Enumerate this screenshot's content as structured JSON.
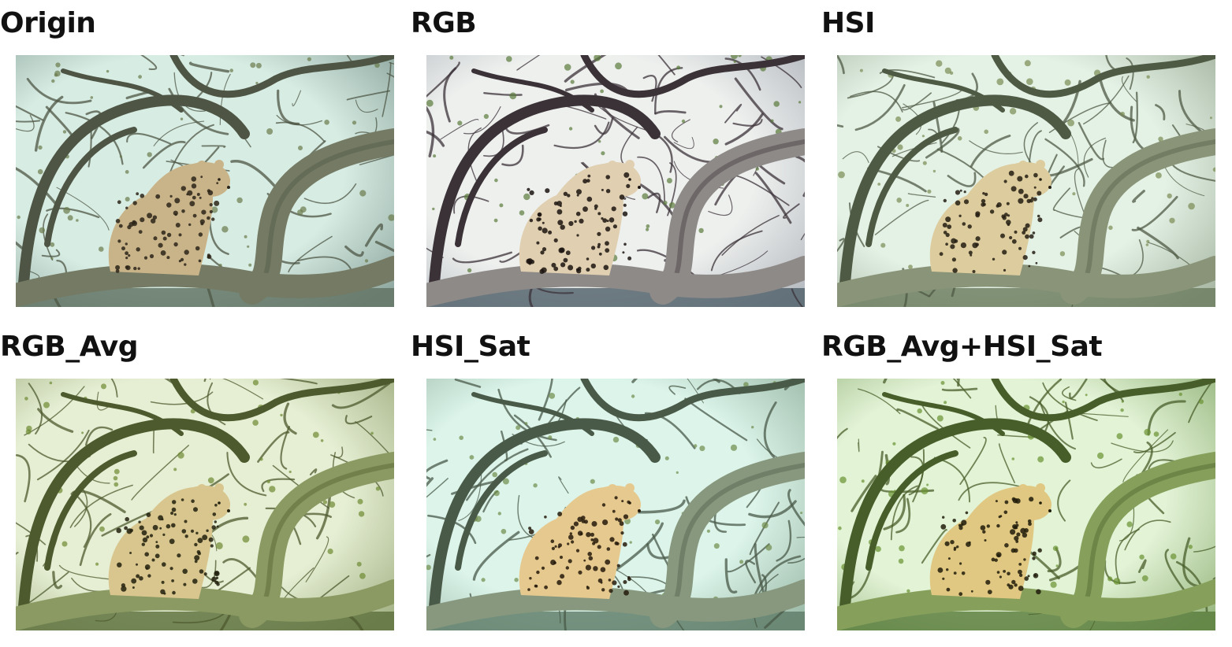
{
  "panels": [
    {
      "title": "Origin",
      "sky": "#d7ece3",
      "sky_edge": "#8fa8a0",
      "branch": "#4e5544",
      "branch_light": "#747a63",
      "leaf": "#6a7a4a",
      "leopard": "#c9b48a",
      "spot": "#2b2418",
      "ground": "#5f7060"
    },
    {
      "title": "RGB",
      "sky": "#eef0ee",
      "sky_edge": "#b7bcc2",
      "branch": "#3b3238",
      "branch_light": "#8e8a88",
      "leaf": "#5a7a3a",
      "leopard": "#e0cfb0",
      "spot": "#1b1410",
      "ground": "#4d5e68"
    },
    {
      "title": "HSI",
      "sky": "#e4f2e6",
      "sky_edge": "#a8b8a4",
      "branch": "#4f5a44",
      "branch_light": "#8a9478",
      "leaf": "#7a8c52",
      "leopard": "#dccc9e",
      "spot": "#241d12",
      "ground": "#6a7a5c"
    },
    {
      "title": "RGB_Avg",
      "sky": "#e6efd4",
      "sky_edge": "#a6b488",
      "branch": "#4d5a2e",
      "branch_light": "#8a9a62",
      "leaf": "#6e8a32",
      "leopard": "#d8c68e",
      "spot": "#22200e",
      "ground": "#5a6e3a"
    },
    {
      "title": "HSI_Sat",
      "sky": "#dcf4ea",
      "sky_edge": "#9ebcaa",
      "branch": "#4a5a48",
      "branch_light": "#87987e",
      "leaf": "#6f8c4a",
      "leopard": "#e6c98e",
      "spot": "#241a0c",
      "ground": "#5d7a66"
    },
    {
      "title": "RGB_Avg+HSI_Sat",
      "sky": "#e2f3d6",
      "sky_edge": "#9ab882",
      "branch": "#485e2a",
      "branch_light": "#86a05c",
      "leaf": "#6a9230",
      "leopard": "#e0c882",
      "spot": "#201c0a",
      "ground": "#587a3a"
    }
  ]
}
